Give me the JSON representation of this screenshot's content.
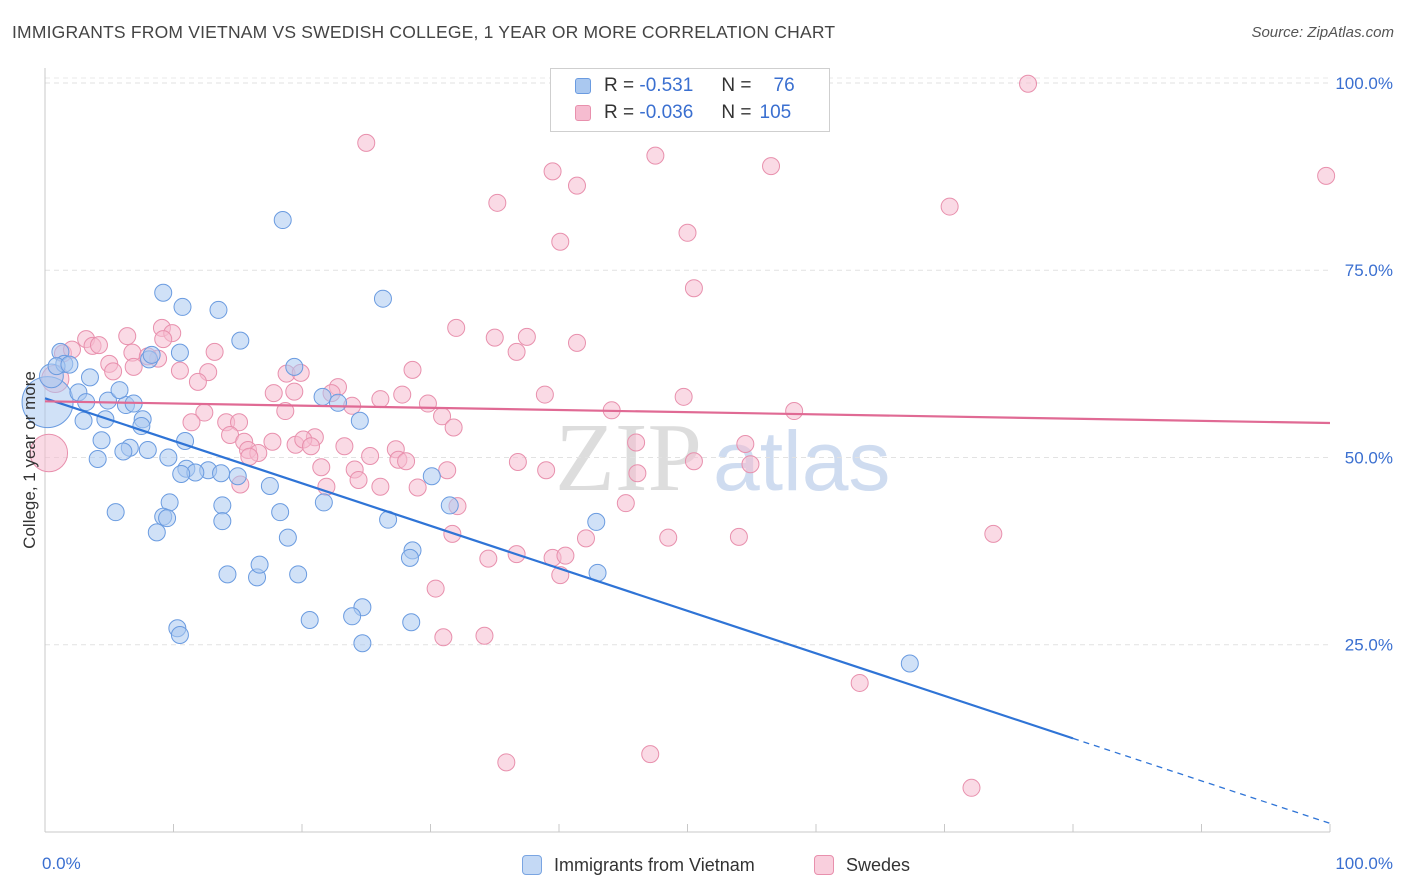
{
  "title": "IMMIGRANTS FROM VIETNAM VS SWEDISH COLLEGE, 1 YEAR OR MORE CORRELATION CHART",
  "source": "Source: ZipAtlas.com",
  "watermark": "ZIPatlas",
  "colors": {
    "blue_fill": "#aac8f0",
    "blue_stroke": "#6a9be0",
    "blue_line": "#2f74d6",
    "pink_fill": "#f6bcd0",
    "pink_stroke": "#e890ad",
    "pink_line": "#e06a94",
    "axis_text": "#3a6fd0"
  },
  "legend": {
    "rows": [
      {
        "r_label": "R =",
        "r_value": "-0.531",
        "n_label": "N =",
        "n_value": "76"
      },
      {
        "r_label": "R =",
        "r_value": "-0.036",
        "n_label": "N =",
        "n_value": "105"
      }
    ]
  },
  "bottom_legend": [
    "Immigrants from Vietnam",
    "Swedes"
  ],
  "chart_data": {
    "type": "scatter",
    "title": "IMMIGRANTS FROM VIETNAM VS SWEDISH COLLEGE, 1 YEAR OR MORE CORRELATION CHART",
    "xlabel": "",
    "ylabel": "College, 1 year or more",
    "xlim": [
      0,
      100
    ],
    "ylim": [
      0,
      102
    ],
    "x_tick_labels": [
      "0.0%",
      "100.0%"
    ],
    "y_ticks": [
      25,
      50,
      75,
      100
    ],
    "y_tick_labels": [
      "25.0%",
      "50.0%",
      "75.0%",
      "100.0%"
    ],
    "grid": true,
    "legend_position": "top-center",
    "series": [
      {
        "name": "Immigrants from Vietnam",
        "color": "#aac8f0",
        "trend": {
          "x0": 0,
          "y0": 57.9,
          "x1": 80,
          "y1": 12.5,
          "dashed_to_x": 100
        },
        "points": [
          [
            0.2,
            57.4,
            30
          ],
          [
            0.5,
            60.9,
            14
          ],
          [
            1.2,
            64.1,
            10
          ],
          [
            1.5,
            62.5,
            10
          ],
          [
            0.9,
            62.2,
            10
          ],
          [
            1.9,
            62.4,
            10
          ],
          [
            3.5,
            60.7,
            10
          ],
          [
            2.6,
            58.7,
            10
          ],
          [
            3.2,
            57.4,
            10
          ],
          [
            4.9,
            57.6,
            10
          ],
          [
            3.0,
            54.9,
            10
          ],
          [
            4.7,
            55.1,
            10
          ],
          [
            6.3,
            57.0,
            10
          ],
          [
            5.8,
            59.0,
            10
          ],
          [
            6.9,
            57.2,
            10
          ],
          [
            7.6,
            55.1,
            10
          ],
          [
            7.5,
            54.2,
            10
          ],
          [
            4.4,
            52.3,
            10
          ],
          [
            6.6,
            51.3,
            10
          ],
          [
            8.0,
            51.0,
            10
          ],
          [
            6.1,
            50.8,
            10
          ],
          [
            4.1,
            49.8,
            10
          ],
          [
            9.6,
            50.0,
            10
          ],
          [
            10.9,
            52.2,
            10
          ],
          [
            10.5,
            64.0,
            10
          ],
          [
            10.7,
            70.1,
            10
          ],
          [
            9.2,
            72.0,
            10
          ],
          [
            13.5,
            69.7,
            10
          ],
          [
            15.2,
            65.6,
            10
          ],
          [
            8.1,
            63.1,
            10
          ],
          [
            8.3,
            63.7,
            10
          ],
          [
            19.4,
            62.1,
            10
          ],
          [
            18.5,
            81.7,
            10
          ],
          [
            26.3,
            71.2,
            10
          ],
          [
            21.6,
            58.1,
            10
          ],
          [
            22.8,
            57.3,
            10
          ],
          [
            12.7,
            48.3,
            10
          ],
          [
            11.0,
            48.5,
            10
          ],
          [
            11.7,
            48.0,
            10
          ],
          [
            10.6,
            47.8,
            10
          ],
          [
            13.7,
            47.9,
            10
          ],
          [
            15.0,
            47.5,
            10
          ],
          [
            17.5,
            46.2,
            10
          ],
          [
            9.7,
            44.0,
            10
          ],
          [
            13.8,
            43.6,
            10
          ],
          [
            5.5,
            42.7,
            10
          ],
          [
            9.2,
            42.1,
            10
          ],
          [
            9.5,
            41.9,
            10
          ],
          [
            8.7,
            40.0,
            10
          ],
          [
            13.8,
            41.5,
            10
          ],
          [
            18.3,
            42.7,
            10
          ],
          [
            18.9,
            39.3,
            10
          ],
          [
            21.7,
            44.0,
            10
          ],
          [
            24.5,
            54.9,
            10
          ],
          [
            30.1,
            47.5,
            10
          ],
          [
            31.5,
            43.6,
            10
          ],
          [
            26.7,
            41.7,
            10
          ],
          [
            28.6,
            37.6,
            10
          ],
          [
            28.4,
            36.6,
            10
          ],
          [
            42.9,
            41.4,
            10
          ],
          [
            43.0,
            34.6,
            10
          ],
          [
            14.2,
            34.4,
            10
          ],
          [
            16.5,
            34.0,
            10
          ],
          [
            16.7,
            35.7,
            10
          ],
          [
            19.7,
            34.4,
            10
          ],
          [
            24.7,
            30.0,
            10
          ],
          [
            23.9,
            28.8,
            10
          ],
          [
            20.6,
            28.3,
            10
          ],
          [
            28.5,
            28.0,
            10
          ],
          [
            10.3,
            27.2,
            10
          ],
          [
            10.5,
            26.3,
            10
          ],
          [
            24.7,
            25.2,
            10
          ],
          [
            67.3,
            22.5,
            10
          ]
        ]
      },
      {
        "name": "Swedes",
        "color": "#f6bcd0",
        "trend": {
          "x0": 0,
          "y0": 57.5,
          "x1": 100,
          "y1": 54.6
        },
        "points": [
          [
            0.3,
            50.6,
            22
          ],
          [
            0.8,
            60.5,
            16
          ],
          [
            1.4,
            63.9,
            10
          ],
          [
            2.1,
            64.4,
            10
          ],
          [
            3.2,
            65.8,
            10
          ],
          [
            3.7,
            64.9,
            10
          ],
          [
            4.2,
            65.0,
            10
          ],
          [
            6.4,
            66.2,
            10
          ],
          [
            9.1,
            67.3,
            10
          ],
          [
            9.9,
            66.6,
            10
          ],
          [
            9.2,
            65.8,
            10
          ],
          [
            6.8,
            64.0,
            10
          ],
          [
            5.0,
            62.5,
            10
          ],
          [
            6.9,
            62.1,
            10
          ],
          [
            8.8,
            63.2,
            10
          ],
          [
            8.0,
            63.5,
            10
          ],
          [
            5.3,
            61.5,
            10
          ],
          [
            10.5,
            61.6,
            10
          ],
          [
            12.7,
            61.4,
            10
          ],
          [
            13.2,
            64.1,
            10
          ],
          [
            11.9,
            60.1,
            10
          ],
          [
            18.8,
            61.2,
            10
          ],
          [
            19.9,
            61.3,
            10
          ],
          [
            17.8,
            58.6,
            10
          ],
          [
            19.4,
            58.8,
            10
          ],
          [
            22.8,
            59.4,
            10
          ],
          [
            22.3,
            58.6,
            10
          ],
          [
            27.8,
            58.4,
            10
          ],
          [
            26.1,
            57.8,
            10
          ],
          [
            28.6,
            61.7,
            10
          ],
          [
            23.9,
            56.9,
            10
          ],
          [
            29.8,
            57.2,
            10
          ],
          [
            30.9,
            55.5,
            10
          ],
          [
            12.4,
            56.0,
            10
          ],
          [
            14.1,
            54.7,
            10
          ],
          [
            15.1,
            54.7,
            10
          ],
          [
            18.7,
            56.2,
            10
          ],
          [
            11.4,
            54.7,
            10
          ],
          [
            14.4,
            53.0,
            10
          ],
          [
            17.7,
            52.1,
            10
          ],
          [
            19.5,
            51.7,
            10
          ],
          [
            15.5,
            52.1,
            10
          ],
          [
            15.8,
            51.0,
            10
          ],
          [
            16.6,
            50.6,
            10
          ],
          [
            21.0,
            52.7,
            10
          ],
          [
            20.1,
            52.4,
            10
          ],
          [
            20.7,
            51.5,
            10
          ],
          [
            23.3,
            51.5,
            10
          ],
          [
            31.8,
            54.0,
            10
          ],
          [
            27.3,
            51.1,
            10
          ],
          [
            25.3,
            50.2,
            10
          ],
          [
            15.9,
            50.1,
            10
          ],
          [
            27.5,
            49.7,
            10
          ],
          [
            28.1,
            49.5,
            10
          ],
          [
            21.5,
            48.7,
            10
          ],
          [
            24.1,
            48.4,
            10
          ],
          [
            31.3,
            48.3,
            10
          ],
          [
            36.8,
            49.4,
            10
          ],
          [
            15.2,
            46.4,
            10
          ],
          [
            21.9,
            46.1,
            10
          ],
          [
            24.4,
            47.0,
            10
          ],
          [
            26.1,
            46.1,
            10
          ],
          [
            29.0,
            46.0,
            10
          ],
          [
            32.1,
            43.5,
            10
          ],
          [
            42.1,
            39.2,
            10
          ],
          [
            31.7,
            39.8,
            10
          ],
          [
            39.0,
            48.3,
            10
          ],
          [
            46.0,
            52.0,
            10
          ],
          [
            50.5,
            49.5,
            10
          ],
          [
            45.2,
            43.9,
            10
          ],
          [
            35.0,
            66.0,
            10
          ],
          [
            32.0,
            67.3,
            10
          ],
          [
            36.7,
            64.1,
            10
          ],
          [
            37.5,
            66.1,
            10
          ],
          [
            41.4,
            65.3,
            10
          ],
          [
            38.9,
            58.4,
            10
          ],
          [
            34.5,
            36.5,
            10
          ],
          [
            36.7,
            37.1,
            10
          ],
          [
            39.5,
            36.6,
            10
          ],
          [
            40.5,
            36.9,
            10
          ],
          [
            40.1,
            34.3,
            10
          ],
          [
            30.4,
            32.5,
            10
          ],
          [
            31.0,
            26.0,
            10
          ],
          [
            34.2,
            26.2,
            10
          ],
          [
            50.0,
            80.0,
            10
          ],
          [
            49.7,
            58.1,
            10
          ],
          [
            44.1,
            56.3,
            10
          ],
          [
            46.1,
            47.9,
            10
          ],
          [
            40.1,
            78.8,
            10
          ],
          [
            41.4,
            86.3,
            10
          ],
          [
            35.2,
            84.0,
            10
          ],
          [
            39.5,
            88.2,
            10
          ],
          [
            47.5,
            90.3,
            10
          ],
          [
            50.5,
            72.6,
            10
          ],
          [
            56.5,
            88.9,
            10
          ],
          [
            70.4,
            83.5,
            10
          ],
          [
            76.5,
            99.9,
            10
          ],
          [
            99.7,
            87.6,
            10
          ],
          [
            25.0,
            92.0,
            10
          ],
          [
            35.9,
            9.3,
            10
          ],
          [
            47.1,
            10.4,
            10
          ],
          [
            72.1,
            5.9,
            10
          ],
          [
            63.4,
            19.9,
            10
          ],
          [
            73.8,
            39.8,
            10
          ],
          [
            48.5,
            39.3,
            10
          ],
          [
            54.0,
            39.4,
            10
          ],
          [
            58.3,
            56.2,
            10
          ],
          [
            54.5,
            51.8,
            10
          ],
          [
            54.9,
            49.1,
            10
          ]
        ]
      }
    ]
  }
}
